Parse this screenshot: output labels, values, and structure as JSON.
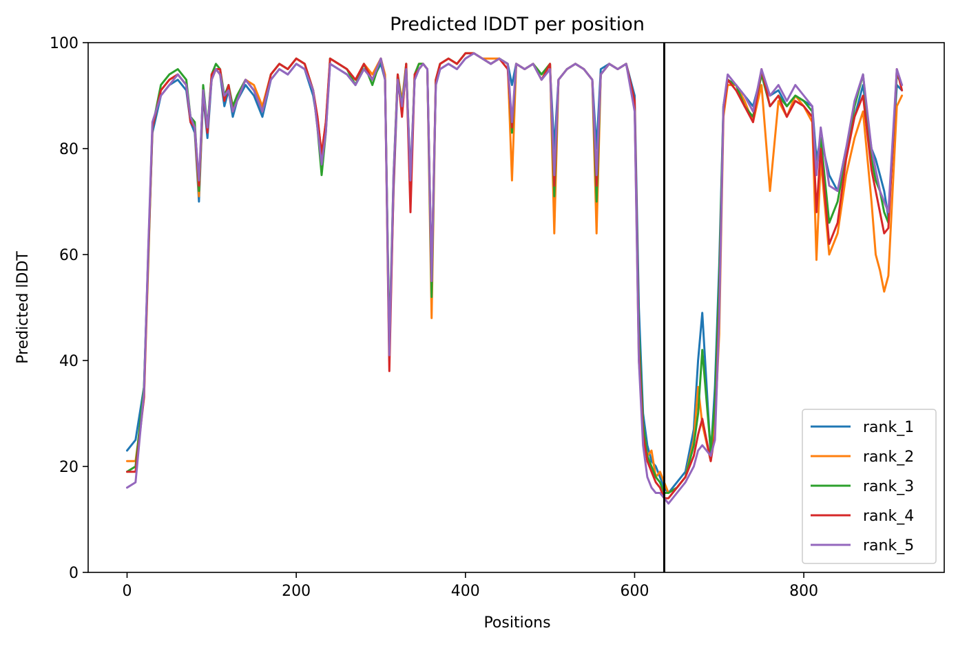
{
  "chart_data": {
    "type": "line",
    "title": "Predicted lDDT per position",
    "xlabel": "Positions",
    "ylabel": "Predicted lDDT",
    "xlim": [
      -46,
      966
    ],
    "ylim": [
      0,
      100
    ],
    "xticks": [
      0,
      200,
      400,
      600,
      800
    ],
    "yticks": [
      0,
      20,
      40,
      60,
      80,
      100
    ],
    "xtick_labels": [
      "0",
      "200",
      "400",
      "600",
      "800"
    ],
    "ytick_labels": [
      "0",
      "20",
      "40",
      "60",
      "80",
      "100"
    ],
    "grid": false,
    "legend_position": "lower right",
    "vline_x": 635,
    "x": [
      0,
      10,
      20,
      25,
      30,
      40,
      50,
      60,
      70,
      75,
      80,
      85,
      90,
      95,
      100,
      105,
      110,
      115,
      120,
      125,
      130,
      140,
      150,
      160,
      170,
      180,
      190,
      200,
      210,
      220,
      225,
      230,
      235,
      240,
      250,
      260,
      270,
      280,
      290,
      300,
      305,
      310,
      315,
      320,
      325,
      330,
      335,
      340,
      345,
      350,
      355,
      360,
      365,
      370,
      380,
      390,
      400,
      410,
      420,
      430,
      440,
      450,
      455,
      460,
      470,
      480,
      490,
      500,
      505,
      510,
      520,
      530,
      540,
      550,
      555,
      560,
      570,
      580,
      590,
      600,
      605,
      610,
      615,
      620,
      625,
      630,
      635,
      640,
      650,
      660,
      670,
      675,
      680,
      690,
      695,
      700,
      705,
      710,
      720,
      730,
      740,
      750,
      760,
      770,
      780,
      790,
      800,
      810,
      815,
      820,
      830,
      840,
      850,
      860,
      870,
      880,
      885,
      890,
      895,
      900,
      910,
      916
    ],
    "series": [
      {
        "name": "rank_1",
        "color": "#1f77b4",
        "values": [
          23,
          25,
          35,
          60,
          83,
          90,
          92,
          93,
          91,
          85,
          83,
          70,
          90,
          82,
          93,
          95,
          94,
          88,
          91,
          86,
          89,
          92,
          90,
          86,
          93,
          95,
          94,
          96,
          95,
          90,
          85,
          78,
          84,
          96,
          95,
          94,
          92,
          95,
          93,
          96,
          93,
          42,
          72,
          93,
          87,
          95,
          75,
          93,
          95,
          96,
          95,
          56,
          92,
          95,
          96,
          95,
          97,
          98,
          97,
          96,
          97,
          96,
          92,
          96,
          95,
          96,
          93,
          95,
          80,
          93,
          95,
          96,
          95,
          93,
          80,
          95,
          96,
          95,
          96,
          90,
          50,
          30,
          24,
          21,
          20,
          18,
          16,
          15,
          17,
          19,
          27,
          40,
          49,
          22,
          35,
          58,
          88,
          93,
          92,
          90,
          88,
          94,
          90,
          91,
          88,
          90,
          89,
          88,
          78,
          82,
          75,
          72,
          80,
          86,
          92,
          80,
          78,
          75,
          72,
          67,
          92,
          91
        ]
      },
      {
        "name": "rank_2",
        "color": "#ff7f0e",
        "values": [
          21,
          21,
          33,
          58,
          84,
          91,
          93,
          94,
          92,
          86,
          84,
          71,
          91,
          84,
          93,
          95,
          94,
          90,
          91,
          87,
          90,
          93,
          92,
          88,
          94,
          96,
          95,
          97,
          96,
          91,
          86,
          79,
          85,
          97,
          96,
          95,
          93,
          96,
          94,
          97,
          94,
          40,
          74,
          94,
          89,
          96,
          73,
          94,
          96,
          96,
          95,
          48,
          93,
          96,
          97,
          96,
          98,
          98,
          97,
          97,
          97,
          96,
          74,
          96,
          95,
          96,
          94,
          96,
          64,
          93,
          95,
          96,
          95,
          93,
          64,
          94,
          96,
          95,
          96,
          88,
          40,
          28,
          22,
          23,
          18,
          19,
          17,
          15,
          16,
          18,
          25,
          35,
          28,
          21,
          28,
          45,
          86,
          92,
          92,
          89,
          85,
          92,
          72,
          89,
          86,
          90,
          88,
          85,
          59,
          78,
          60,
          64,
          75,
          82,
          87,
          70,
          60,
          57,
          53,
          56,
          88,
          90
        ]
      },
      {
        "name": "rank_3",
        "color": "#2ca02c",
        "values": [
          19,
          20,
          35,
          59,
          84,
          92,
          94,
          95,
          93,
          86,
          85,
          72,
          92,
          84,
          94,
          96,
          95,
          90,
          92,
          88,
          90,
          93,
          91,
          87,
          94,
          96,
          95,
          97,
          96,
          91,
          84,
          75,
          83,
          97,
          96,
          95,
          92,
          96,
          92,
          97,
          93,
          43,
          75,
          94,
          88,
          96,
          72,
          94,
          96,
          96,
          95,
          52,
          93,
          96,
          97,
          96,
          98,
          98,
          97,
          96,
          97,
          96,
          83,
          96,
          95,
          96,
          94,
          96,
          71,
          93,
          95,
          96,
          95,
          93,
          70,
          94,
          96,
          95,
          96,
          88,
          45,
          28,
          22,
          20,
          18,
          17,
          15,
          15,
          16,
          18,
          24,
          30,
          42,
          23,
          32,
          55,
          88,
          93,
          92,
          88,
          86,
          94,
          88,
          90,
          88,
          90,
          89,
          87,
          76,
          82,
          66,
          70,
          79,
          88,
          94,
          78,
          74,
          72,
          68,
          66,
          94,
          92
        ]
      },
      {
        "name": "rank_4",
        "color": "#d62728",
        "values": [
          19,
          19,
          33,
          60,
          84,
          91,
          93,
          94,
          92,
          85,
          84,
          73,
          91,
          83,
          94,
          95,
          95,
          89,
          92,
          87,
          89,
          93,
          91,
          87,
          94,
          96,
          95,
          97,
          96,
          91,
          86,
          79,
          85,
          97,
          96,
          95,
          93,
          96,
          93,
          97,
          93,
          38,
          73,
          94,
          86,
          96,
          68,
          94,
          95,
          96,
          95,
          55,
          93,
          96,
          97,
          96,
          98,
          98,
          97,
          96,
          97,
          95,
          84,
          96,
          95,
          96,
          93,
          96,
          73,
          93,
          95,
          96,
          95,
          93,
          73,
          94,
          96,
          95,
          96,
          89,
          42,
          26,
          21,
          19,
          17,
          16,
          14,
          14,
          16,
          18,
          22,
          26,
          29,
          21,
          26,
          50,
          87,
          93,
          91,
          88,
          85,
          95,
          88,
          90,
          86,
          89,
          88,
          86,
          68,
          80,
          62,
          66,
          78,
          86,
          90,
          76,
          72,
          68,
          64,
          65,
          95,
          91
        ]
      },
      {
        "name": "rank_5",
        "color": "#9467bd",
        "values": [
          16,
          17,
          34,
          61,
          85,
          90,
          92,
          94,
          92,
          86,
          84,
          74,
          91,
          84,
          93,
          95,
          94,
          90,
          91,
          87,
          89,
          93,
          91,
          87,
          93,
          95,
          94,
          96,
          95,
          91,
          84,
          77,
          83,
          96,
          95,
          94,
          92,
          95,
          93,
          97,
          93,
          41,
          75,
          93,
          88,
          95,
          74,
          93,
          95,
          96,
          95,
          55,
          92,
          95,
          96,
          95,
          97,
          98,
          97,
          96,
          97,
          96,
          85,
          96,
          95,
          96,
          93,
          95,
          75,
          93,
          95,
          96,
          95,
          93,
          75,
          94,
          96,
          95,
          96,
          87,
          40,
          24,
          18,
          16,
          15,
          15,
          14,
          13,
          15,
          17,
          20,
          23,
          24,
          22,
          25,
          48,
          88,
          94,
          92,
          90,
          87,
          95,
          90,
          92,
          89,
          92,
          90,
          88,
          75,
          84,
          73,
          72,
          80,
          89,
          94,
          80,
          76,
          72,
          70,
          68,
          95,
          92
        ]
      }
    ]
  }
}
